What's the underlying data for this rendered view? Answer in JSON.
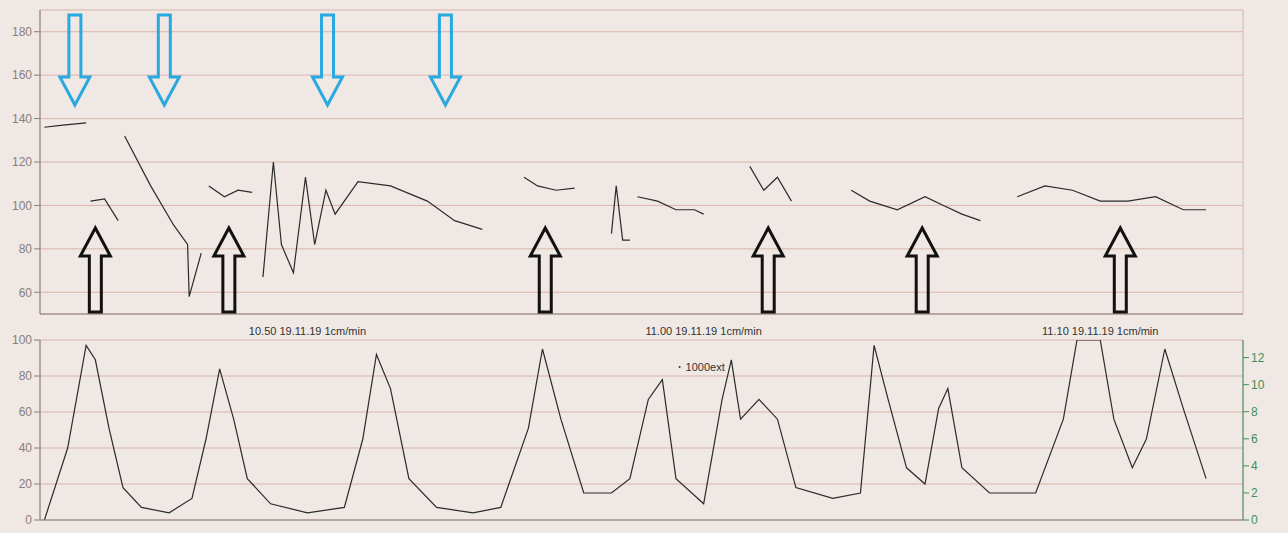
{
  "chart_data": [
    {
      "type": "line",
      "x": [
        0.11,
        0.57,
        1.15,
        1.2,
        1.26,
        1.61,
        1.95,
        2.02,
        2.11,
        2.76,
        3.33,
        3.68,
        3.72,
        4.02,
        4.11,
        4.21,
        4.6,
        4.94,
        5.29,
        5.43,
        5.56,
        5.82,
        6.02,
        6.32,
        6.62,
        6.85,
        7.13,
        7.36,
        7.93,
        8.74,
        9.66,
        10.34,
        11.03,
        11.49,
        12.07,
        12.41,
        12.87,
        13.33,
        13.79,
        14.25,
        14.37,
        14.53,
        14.71,
        14.8,
        14.9,
        15.4,
        15.86,
        16.32,
        16.55,
        17.13,
        17.7,
        18.05,
        18.39,
        18.74,
        19.54,
        20.23,
        20.69,
        21.38,
        22.07,
        22.53,
        22.99,
        23.45,
        23.91,
        24.37,
        25.06,
        25.75,
        26.44,
        27.13,
        27.82,
        28.51,
        29.08
      ],
      "values": [
        136,
        137,
        138,
        null,
        102,
        103,
        93,
        null,
        132,
        109,
        91,
        82,
        58,
        78,
        null,
        109,
        104,
        107,
        106,
        null,
        67,
        120,
        82,
        69,
        113,
        82,
        107,
        96,
        111,
        109,
        102,
        93,
        89,
        null,
        113,
        109,
        107,
        108,
        null,
        87,
        109,
        84,
        84,
        null,
        104,
        102,
        98,
        98,
        96,
        null,
        118,
        107,
        113,
        102,
        null,
        107,
        102,
        98,
        104,
        100,
        96,
        93,
        null,
        104,
        109,
        107,
        102,
        102,
        104,
        98,
        98
      ],
      "color": "#2b2b2b",
      "xlim": [
        0,
        30
      ],
      "xticks": [
        0,
        1,
        2,
        3,
        4,
        5,
        6,
        7,
        8,
        9,
        10,
        11,
        12,
        13,
        14,
        15,
        16,
        17,
        18,
        19,
        20,
        21,
        22,
        23,
        24,
        25,
        26,
        27,
        28,
        29,
        30
      ],
      "ylim": [
        50,
        190
      ],
      "yticks": [
        60,
        80,
        100,
        120,
        140,
        160,
        180
      ],
      "grid": true,
      "tick_labels": "y"
    },
    {
      "type": "line",
      "x": [
        0.11,
        0.69,
        1.15,
        1.38,
        1.72,
        2.07,
        2.53,
        3.22,
        3.79,
        4.14,
        4.48,
        4.83,
        5.17,
        5.75,
        6.67,
        7.59,
        8.05,
        8.39,
        8.74,
        9.2,
        9.89,
        10.8,
        11.49,
        12.18,
        12.53,
        12.99,
        13.56,
        14.25,
        14.71,
        15.17,
        15.52,
        15.86,
        16.55,
        17.01,
        17.24,
        17.47,
        17.93,
        18.39,
        18.85,
        19.77,
        20.46,
        20.8,
        21.15,
        21.61,
        22.07,
        22.41,
        22.64,
        22.99,
        23.68,
        24.83,
        25.52,
        25.86,
        26.44,
        26.78,
        27.24,
        27.59,
        28.05,
        28.51,
        29.08
      ],
      "values": [
        0,
        40,
        97,
        89,
        51,
        18,
        7,
        4,
        12,
        45,
        84,
        56,
        23,
        9,
        4,
        7,
        45,
        92,
        73,
        23,
        7,
        4,
        7,
        51,
        95,
        56,
        15,
        15,
        23,
        67,
        78,
        23,
        9,
        67,
        89,
        56,
        67,
        56,
        18,
        12,
        15,
        97,
        67,
        29,
        20,
        62,
        73,
        29,
        15,
        15,
        56,
        100,
        100,
        56,
        29,
        45,
        95,
        62,
        23
      ],
      "color": "#2b2b2b",
      "xlim": [
        0,
        30
      ],
      "xticks": [
        0,
        1,
        2,
        3,
        4,
        5,
        6,
        7,
        8,
        9,
        10,
        11,
        12,
        13,
        14,
        15,
        16,
        17,
        18,
        19,
        20,
        21,
        22,
        23,
        24,
        25,
        26,
        27,
        28,
        29,
        30
      ],
      "ylim": [
        0,
        100
      ],
      "yticks": [
        0,
        20,
        40,
        60,
        80,
        100
      ],
      "y2lim": [
        0,
        13.3
      ],
      "y2ticks": [
        0,
        2,
        4,
        6,
        8,
        10,
        12
      ],
      "grid": true,
      "tick_labels": "y",
      "annotations": [
        {
          "x": 6.67,
          "text": "10.50 19.11.19 1cm/min"
        },
        {
          "x": 16.55,
          "text": "11.00 19.11.19 1cm/min"
        },
        {
          "x": 26.44,
          "text": "11.10 19.11.19 1cm/min"
        },
        {
          "x": 15.95,
          "y": 85,
          "text": "1000ext"
        }
      ]
    }
  ]
}
